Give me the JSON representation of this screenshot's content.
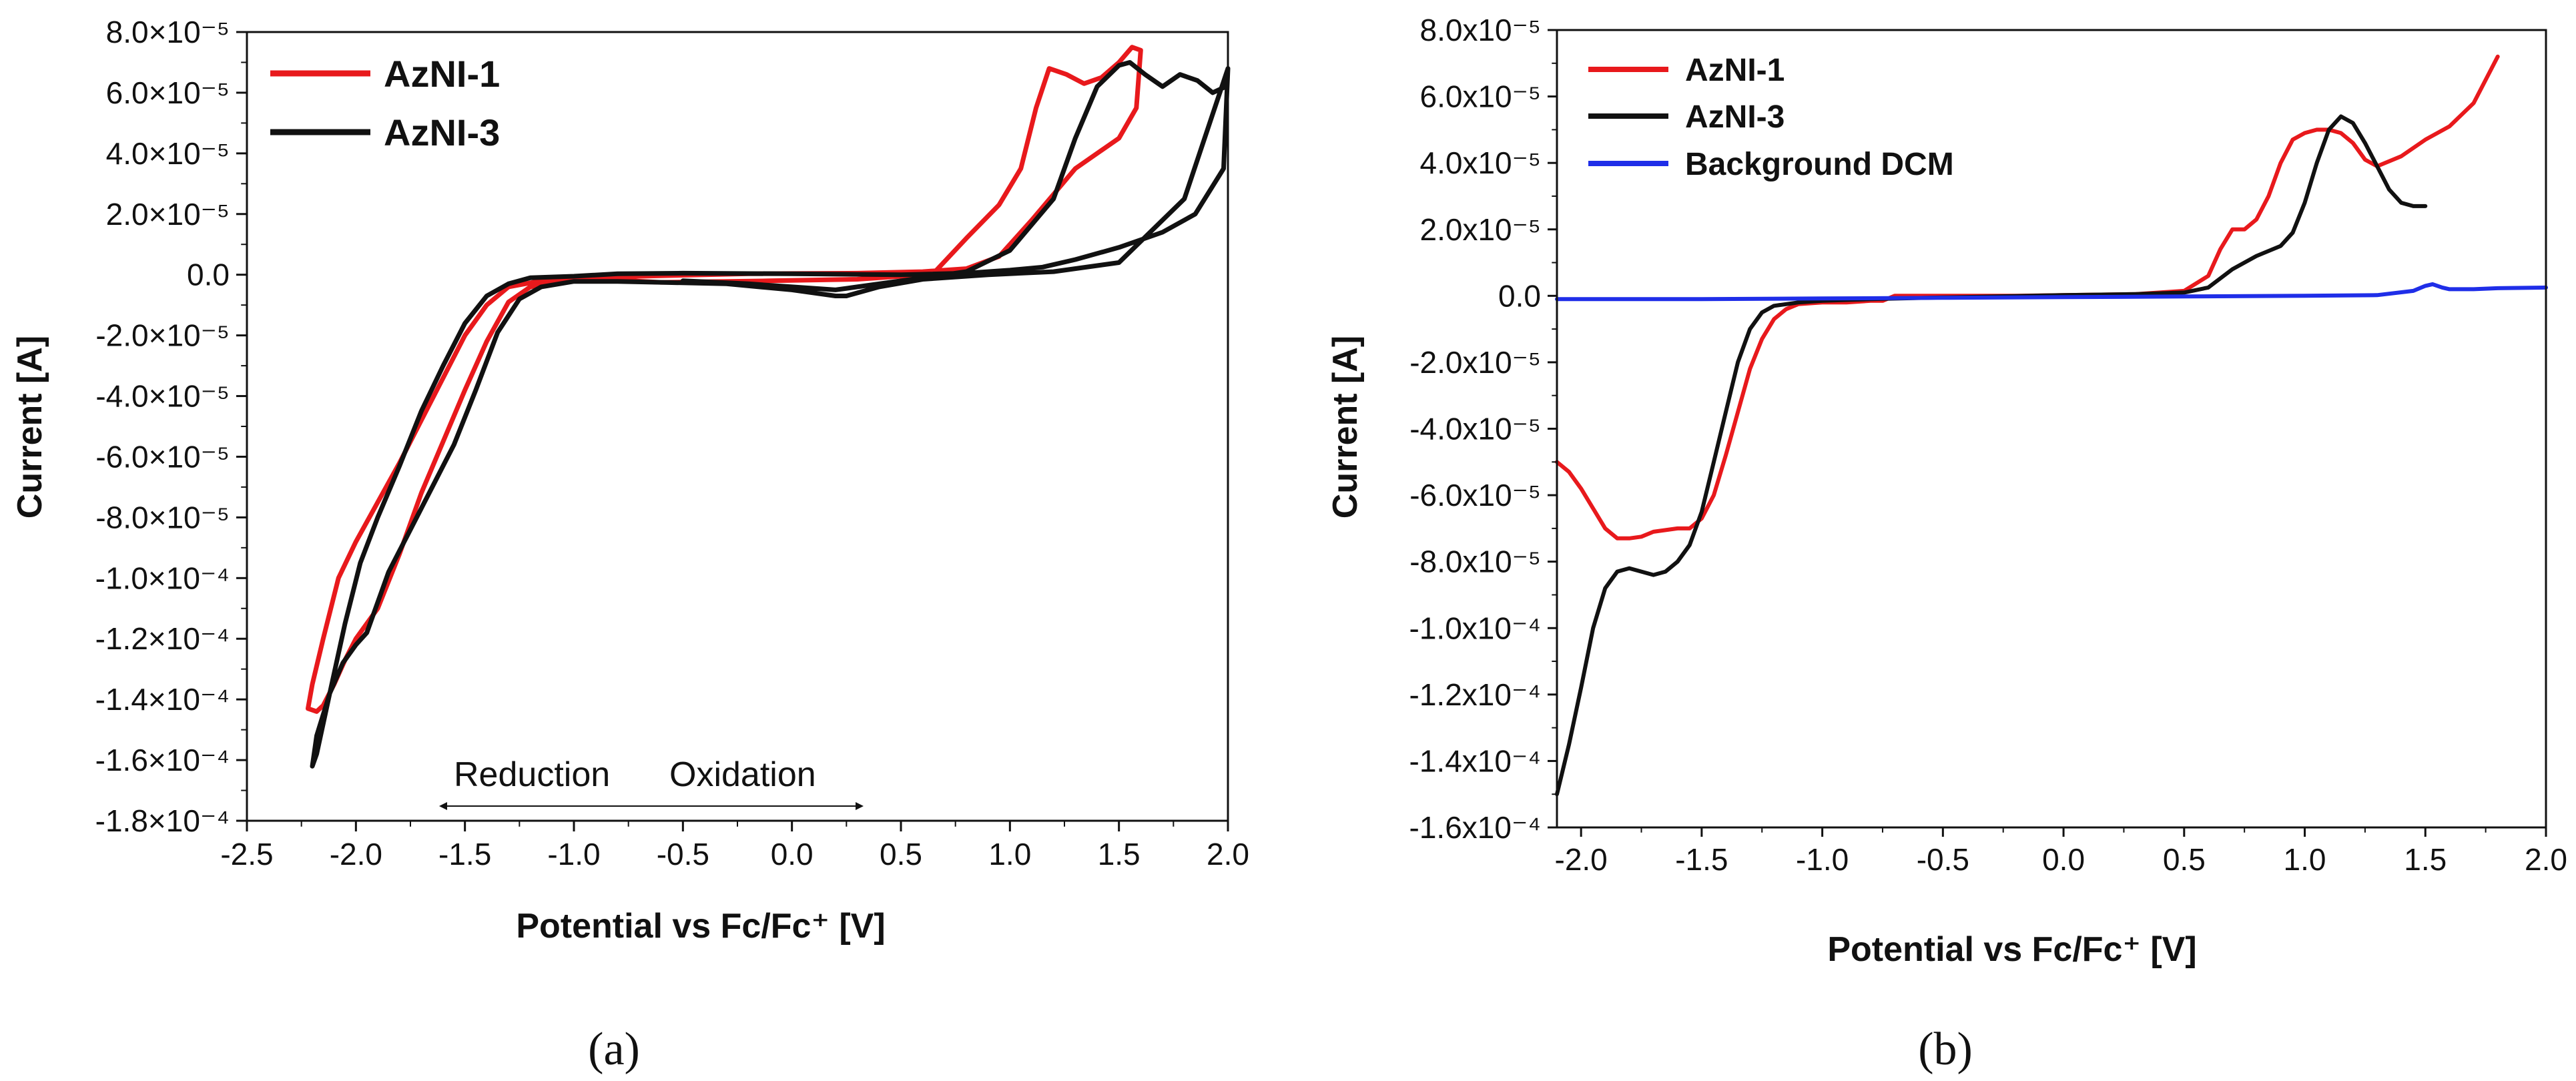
{
  "chart_data": [
    {
      "panel": "a",
      "type": "line",
      "xlabel": "Potential vs Fc/Fc⁺ [V]",
      "ylabel": "Current [A]",
      "xlim": [
        -2.5,
        2.0
      ],
      "ylim": [
        -0.00018,
        8e-05
      ],
      "xticks": [
        -2.5,
        -2.0,
        -1.5,
        -1.0,
        -0.5,
        0.0,
        0.5,
        1.0,
        1.5,
        2.0
      ],
      "xtick_labels": [
        "-2.5",
        "-2.0",
        "-1.5",
        "-1.0",
        "-0.5",
        "0.0",
        "0.5",
        "1.0",
        "1.5",
        "2.0"
      ],
      "yticks": [
        8e-05,
        6e-05,
        4e-05,
        2e-05,
        0,
        -2e-05,
        -4e-05,
        -6e-05,
        -8e-05,
        -0.0001,
        -0.00012,
        -0.00014,
        -0.00016,
        -0.00018
      ],
      "ytick_labels": [
        "8.0×10⁻⁵",
        "6.0×10⁻⁵",
        "4.0×10⁻⁵",
        "2.0×10⁻⁵",
        "0.0",
        "-2.0×10⁻⁵",
        "-4.0×10⁻⁵",
        "-6.0×10⁻⁵",
        "-8.0×10⁻⁵",
        "-1.0×10⁻⁴",
        "-1.2×10⁻⁴",
        "-1.4×10⁻⁴",
        "-1.6×10⁻⁴",
        "-1.8×10⁻⁴"
      ],
      "legend": [
        "AzNI-1",
        "AzNI-3"
      ],
      "annotations": [
        "Reduction",
        "Oxidation"
      ],
      "series": [
        {
          "name": "AzNI-1",
          "color": "#e8191c",
          "x": [
            -0.6,
            -0.1,
            0.3,
            0.5,
            0.65,
            0.8,
            0.95,
            1.05,
            1.12,
            1.18,
            1.26,
            1.34,
            1.42,
            1.5,
            1.56,
            1.6,
            1.58,
            1.5,
            1.3,
            1.1,
            0.95,
            0.8,
            0.6,
            0.3,
            -0.2,
            -0.7,
            -1.0,
            -1.2,
            -1.3,
            -1.4,
            -1.5,
            -1.6,
            -1.7,
            -1.8,
            -1.9,
            -2.0,
            -2.05,
            -2.1,
            -2.15,
            -2.18,
            -2.22,
            -2.2,
            -2.15,
            -2.08,
            -2.0,
            -1.9,
            -1.8,
            -1.7,
            -1.6,
            -1.5,
            -1.4,
            -1.3,
            -1.15,
            -1.0,
            -0.8,
            -0.6
          ],
          "y": [
            -2.5e-06,
            -2e-06,
            -1.5e-06,
            -5e-07,
            5e-07,
            1.2e-05,
            2.3e-05,
            3.5e-05,
            5.5e-05,
            6.8e-05,
            6.6e-05,
            6.3e-05,
            6.5e-05,
            7e-05,
            7.5e-05,
            7.4e-05,
            5.5e-05,
            4.5e-05,
            3.5e-05,
            1.8e-05,
            6e-06,
            2e-06,
            1e-06,
            5e-07,
            3e-07,
            -5e-07,
            -1.5e-06,
            -4e-06,
            -9e-06,
            -2.2e-05,
            -3.8e-05,
            -5.5e-05,
            -7.2e-05,
            -9.2e-05,
            -0.00011,
            -0.00012,
            -0.000127,
            -0.000135,
            -0.000142,
            -0.000144,
            -0.000143,
            -0.000135,
            -0.00012,
            -0.0001,
            -8.8e-05,
            -7.5e-05,
            -6.2e-05,
            -4.8e-05,
            -3.4e-05,
            -2e-05,
            -1e-05,
            -4e-06,
            -2e-06,
            -1e-06,
            -1.8e-06,
            -2.5e-06
          ]
        },
        {
          "name": "AzNI-3",
          "color": "#111111",
          "x": [
            -0.5,
            -0.2,
            0.0,
            0.2,
            0.3,
            0.5,
            0.8,
            1.0,
            1.2,
            1.3,
            1.4,
            1.5,
            1.55,
            1.62,
            1.7,
            1.78,
            1.86,
            1.93,
            1.99,
            2.0,
            1.98,
            1.85,
            1.7,
            1.5,
            1.3,
            1.15,
            1.0,
            0.8,
            0.5,
            0.0,
            -0.5,
            -0.8,
            -1.0,
            -1.2,
            -1.3,
            -1.4,
            -1.5,
            -1.6,
            -1.7,
            -1.8,
            -1.9,
            -1.98,
            -2.05,
            -2.12,
            -2.18,
            -2.2,
            -2.18,
            -2.12,
            -2.06,
            -2.0,
            -1.95,
            -1.85,
            -1.75,
            -1.65,
            -1.55,
            -1.45,
            -1.35,
            -1.25,
            -1.15,
            -1.0,
            -0.8,
            -0.6,
            -0.3,
            0.0,
            0.2,
            0.25,
            0.4,
            0.6,
            0.9,
            1.2,
            1.5,
            1.8,
            2.0
          ],
          "y": [
            -2e-06,
            -3e-06,
            -4e-06,
            -5e-06,
            -4e-06,
            -2e-06,
            1e-06,
            8e-06,
            2.5e-05,
            4.5e-05,
            6.2e-05,
            6.9e-05,
            7e-05,
            6.6e-05,
            6.2e-05,
            6.6e-05,
            6.4e-05,
            6e-05,
            6.2e-05,
            6.8e-05,
            3.5e-05,
            2e-05,
            1.4e-05,
            9e-06,
            5e-06,
            2.5e-06,
            1.5e-06,
            5e-07,
            0,
            3e-07,
            5e-07,
            3e-07,
            -5e-07,
            -1e-06,
            -3e-06,
            -7e-06,
            -1.6e-05,
            -3e-05,
            -4.5e-05,
            -6.3e-05,
            -8e-05,
            -9.5e-05,
            -0.000115,
            -0.000138,
            -0.000158,
            -0.000162,
            -0.000152,
            -0.000138,
            -0.000128,
            -0.000122,
            -0.000118,
            -9.8e-05,
            -8.4e-05,
            -7e-05,
            -5.6e-05,
            -3.8e-05,
            -1.9e-05,
            -8e-06,
            -4e-06,
            -2.2e-06,
            -2.2e-06,
            -2.5e-06,
            -3e-06,
            -5e-06,
            -7e-06,
            -7e-06,
            -4e-06,
            -1.5e-06,
            0,
            1e-06,
            4e-06,
            2.5e-05,
            6.8e-05
          ]
        }
      ]
    },
    {
      "panel": "b",
      "type": "line",
      "xlabel": "Potential vs Fc/Fc⁺ [V]",
      "ylabel": "Current [A]",
      "xlim": [
        -2.1,
        2.0
      ],
      "ylim": [
        -0.00016,
        8e-05
      ],
      "xticks": [
        -2.0,
        -1.5,
        -1.0,
        -0.5,
        0.0,
        0.5,
        1.0,
        1.5,
        2.0
      ],
      "xtick_labels": [
        "-2.0",
        "-1.5",
        "-1.0",
        "-0.5",
        "0.0",
        "0.5",
        "1.0",
        "1.5",
        "2.0"
      ],
      "yticks": [
        8e-05,
        6e-05,
        4e-05,
        2e-05,
        0,
        -2e-05,
        -4e-05,
        -6e-05,
        -8e-05,
        -0.0001,
        -0.00012,
        -0.00014,
        -0.00016
      ],
      "ytick_labels": [
        "8.0x10⁻⁵",
        "6.0x10⁻⁵",
        "4.0x10⁻⁵",
        "2.0x10⁻⁵",
        "0.0",
        "-2.0x10⁻⁵",
        "-4.0x10⁻⁵",
        "-6.0x10⁻⁵",
        "-8.0x10⁻⁵",
        "-1.0x10⁻⁴",
        "-1.2x10⁻⁴",
        "-1.4x10⁻⁴",
        "-1.6x10⁻⁴"
      ],
      "legend": [
        "AzNI-1",
        "AzNI-3",
        "Background DCM"
      ],
      "series": [
        {
          "name": "AzNI-1",
          "color": "#e8191c",
          "x": [
            -2.1,
            -2.05,
            -2.0,
            -1.95,
            -1.9,
            -1.85,
            -1.8,
            -1.75,
            -1.7,
            -1.65,
            -1.6,
            -1.55,
            -1.5,
            -1.45,
            -1.4,
            -1.35,
            -1.3,
            -1.25,
            -1.2,
            -1.15,
            -1.1,
            -1.0,
            -0.9,
            -0.8,
            -0.75,
            -0.7,
            -0.5,
            -0.2,
            0.0,
            0.3,
            0.5,
            0.6,
            0.65,
            0.7,
            0.75,
            0.8,
            0.85,
            0.9,
            0.95,
            1.0,
            1.05,
            1.1,
            1.15,
            1.2,
            1.25,
            1.3,
            1.4,
            1.5,
            1.6,
            1.7,
            1.8
          ],
          "y": [
            -5e-05,
            -5.3e-05,
            -5.8e-05,
            -6.4e-05,
            -7e-05,
            -7.3e-05,
            -7.3e-05,
            -7.25e-05,
            -7.1e-05,
            -7.05e-05,
            -7e-05,
            -7e-05,
            -6.7e-05,
            -6e-05,
            -4.8e-05,
            -3.5e-05,
            -2.2e-05,
            -1.3e-05,
            -7e-06,
            -4e-06,
            -2.5e-06,
            -2e-06,
            -2e-06,
            -1.5e-06,
            -1.5e-06,
            0,
            0,
            0,
            2e-07,
            5e-07,
            1.5e-06,
            6e-06,
            1.4e-05,
            2e-05,
            2e-05,
            2.3e-05,
            3e-05,
            4e-05,
            4.7e-05,
            4.9e-05,
            5e-05,
            5e-05,
            4.9e-05,
            4.6e-05,
            4.1e-05,
            3.9e-05,
            4.2e-05,
            4.7e-05,
            5.1e-05,
            5.8e-05,
            7.2e-05
          ]
        },
        {
          "name": "AzNI-3",
          "color": "#111111",
          "x": [
            -2.1,
            -2.05,
            -2.0,
            -1.95,
            -1.9,
            -1.85,
            -1.8,
            -1.75,
            -1.7,
            -1.65,
            -1.6,
            -1.55,
            -1.5,
            -1.45,
            -1.4,
            -1.35,
            -1.3,
            -1.25,
            -1.2,
            -1.1,
            -1.0,
            -0.8,
            -0.5,
            0.0,
            0.3,
            0.5,
            0.6,
            0.7,
            0.8,
            0.9,
            0.95,
            1.0,
            1.05,
            1.1,
            1.15,
            1.2,
            1.25,
            1.3,
            1.35,
            1.4,
            1.45,
            1.5
          ],
          "y": [
            -0.00015,
            -0.000135,
            -0.000118,
            -0.0001,
            -8.8e-05,
            -8.3e-05,
            -8.2e-05,
            -8.3e-05,
            -8.4e-05,
            -8.3e-05,
            -8e-05,
            -7.5e-05,
            -6.5e-05,
            -5e-05,
            -3.5e-05,
            -2e-05,
            -1e-05,
            -5e-06,
            -3e-06,
            -2e-06,
            -1.5e-06,
            -1e-06,
            -5e-07,
            2e-07,
            5e-07,
            1e-06,
            2.5e-06,
            8e-06,
            1.2e-05,
            1.5e-05,
            1.9e-05,
            2.8e-05,
            4e-05,
            5e-05,
            5.4e-05,
            5.2e-05,
            4.6e-05,
            3.9e-05,
            3.2e-05,
            2.8e-05,
            2.7e-05,
            2.7e-05
          ]
        },
        {
          "name": "Background DCM",
          "color": "#1f2ee8",
          "x": [
            -2.1,
            -1.5,
            -1.0,
            -0.5,
            0.0,
            0.5,
            1.0,
            1.3,
            1.45,
            1.5,
            1.53,
            1.57,
            1.6,
            1.7,
            1.8,
            2.0
          ],
          "y": [
            -1e-06,
            -1e-06,
            -8e-07,
            -6e-07,
            -4e-07,
            -2e-07,
            0,
            2e-07,
            1.5e-06,
            3e-06,
            3.5e-06,
            2.5e-06,
            2e-06,
            2e-06,
            2.3e-06,
            2.5e-06
          ]
        }
      ]
    }
  ],
  "panel_labels": [
    "(a)",
    "(b)"
  ]
}
